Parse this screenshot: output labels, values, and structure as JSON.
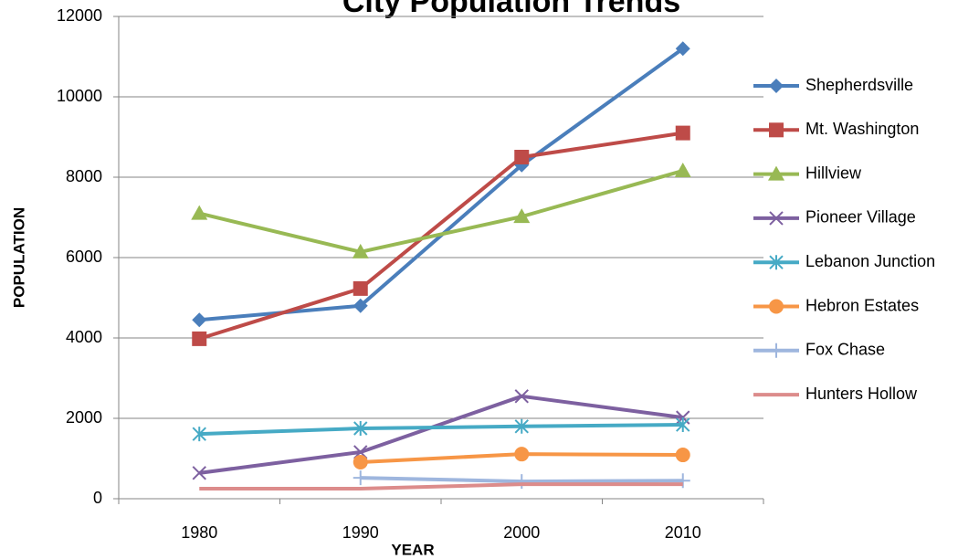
{
  "chart_data": {
    "type": "line",
    "title": "City Population Trends",
    "x_label": "YEAR",
    "y_label": "POPULATION",
    "categories": [
      "1980",
      "1990",
      "2000",
      "2010"
    ],
    "ylim": [
      0,
      12000
    ],
    "yticks": [
      0,
      2000,
      4000,
      6000,
      8000,
      10000,
      12000
    ],
    "grid": true,
    "legend": "right",
    "series": [
      {
        "name": "Shepherdsville",
        "color": "#4a7ebb",
        "marker": "diamond",
        "values": [
          4450,
          4800,
          8300,
          11200
        ]
      },
      {
        "name": "Mt. Washington",
        "color": "#be4b48",
        "marker": "square",
        "values": [
          3980,
          5230,
          8500,
          9100
        ]
      },
      {
        "name": "Hillview",
        "color": "#98b954",
        "marker": "triangle",
        "values": [
          7100,
          6140,
          7020,
          8160
        ]
      },
      {
        "name": "Pioneer Village",
        "color": "#7d60a0",
        "marker": "x",
        "values": [
          640,
          1160,
          2550,
          2020
        ]
      },
      {
        "name": "Lebanon Junction",
        "color": "#46aac5",
        "marker": "star",
        "values": [
          1610,
          1750,
          1800,
          1840
        ]
      },
      {
        "name": "Hebron Estates",
        "color": "#f79646",
        "marker": "circle",
        "values": [
          null,
          910,
          1110,
          1090
        ]
      },
      {
        "name": "Fox Chase",
        "color": "#9eb6de",
        "marker": "plus",
        "values": [
          null,
          520,
          430,
          450
        ]
      },
      {
        "name": "Hunters Hollow",
        "color": "#dc8c8b",
        "marker": "none",
        "values": [
          250,
          250,
          360,
          360
        ]
      }
    ]
  }
}
